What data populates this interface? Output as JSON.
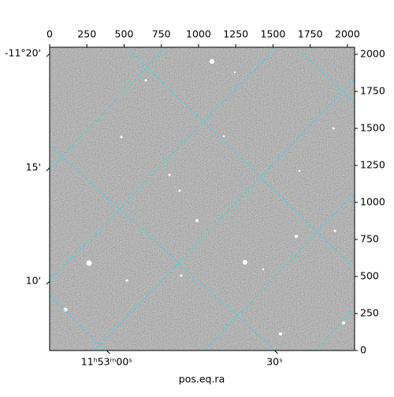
{
  "chart_data": {
    "type": "image",
    "xlabel": "pos.eq.ra",
    "xlim": [
      0,
      2048
    ],
    "ylim": [
      0,
      2048
    ],
    "xticks": [
      0,
      250,
      500,
      750,
      1000,
      1250,
      1500,
      1750,
      2000
    ],
    "yticks": [
      0,
      250,
      500,
      750,
      1000,
      1250,
      1500,
      1750,
      2000
    ],
    "world_xticks": [
      {
        "value": 383,
        "label": "11ʰ53ᵐ00ˢ"
      },
      {
        "value": 1511,
        "label": "30ˢ"
      }
    ],
    "world_yticks": [
      {
        "value": 2005,
        "label": "-11°20'"
      },
      {
        "value": 1234,
        "label": "15'"
      },
      {
        "value": 468,
        "label": "10'"
      }
    ]
  }
}
